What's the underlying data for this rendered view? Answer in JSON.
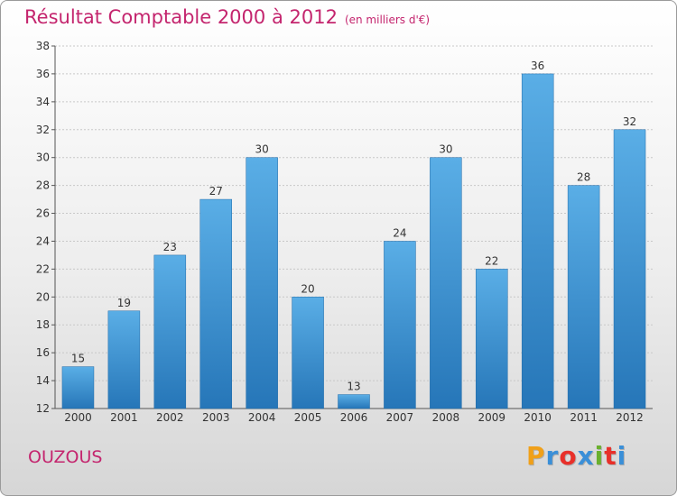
{
  "chart_data": {
    "type": "bar",
    "title": "Résultat Comptable 2000 à 2012",
    "subtitle": "(en milliers d'€)",
    "categories": [
      "2000",
      "2001",
      "2002",
      "2003",
      "2004",
      "2005",
      "2006",
      "2007",
      "2008",
      "2009",
      "2010",
      "2011",
      "2012"
    ],
    "values": [
      15,
      19,
      23,
      27,
      30,
      20,
      13,
      24,
      30,
      22,
      36,
      28,
      32
    ],
    "ylim": [
      12,
      38
    ],
    "yticks": [
      12,
      14,
      16,
      18,
      20,
      22,
      24,
      26,
      28,
      30,
      32,
      34,
      36,
      38
    ],
    "xlabel": "",
    "ylabel": "",
    "grid": true
  },
  "footer": {
    "commune": "OUZOUS",
    "logo_letters": [
      "P",
      "r",
      "o",
      "x",
      "i",
      "t",
      "i"
    ],
    "logo_colors": [
      "#f0a019",
      "#3a8fd8",
      "#e8302a",
      "#3a8fd8",
      "#6ab02e",
      "#e8302a",
      "#3a8fd8"
    ]
  },
  "colors": {
    "title": "#c4256e",
    "bar_top": "#5aaee6",
    "bar_bottom": "#2676b8",
    "grid": "#c8c8c8"
  }
}
